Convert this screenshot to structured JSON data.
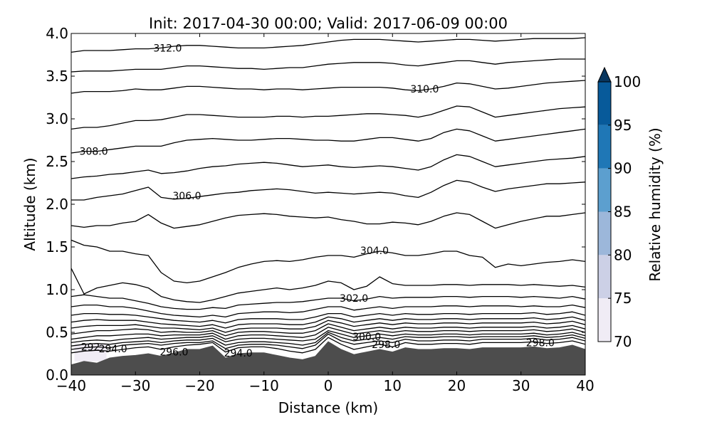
{
  "chart_data": {
    "type": "contour",
    "title": "Init: 2017-04-30 00:00; Valid: 2017-06-09 00:00",
    "xlabel": "Distance (km)",
    "ylabel": "Altitude (km)",
    "xlim": [
      -40,
      40
    ],
    "ylim": [
      0.0,
      4.0
    ],
    "xticks": [
      -40,
      -30,
      -20,
      -10,
      0,
      10,
      20,
      30,
      40
    ],
    "xtick_labels": [
      "−40",
      "−30",
      "−20",
      "−10",
      "0",
      "10",
      "20",
      "30",
      "40"
    ],
    "yticks": [
      0.0,
      0.5,
      1.0,
      1.5,
      2.0,
      2.5,
      3.0,
      3.5,
      4.0
    ],
    "ytick_labels": [
      "0.0",
      "0.5",
      "1.0",
      "1.5",
      "2.0",
      "2.5",
      "3.0",
      "3.5",
      "4.0"
    ],
    "colorbar": {
      "label": "Relative humidity (%)",
      "levels": [
        70,
        75,
        80,
        85,
        90,
        95,
        100
      ],
      "tick_labels": [
        "70",
        "75",
        "80",
        "85",
        "90",
        "95",
        "100"
      ],
      "colors": [
        "#f0ecf5",
        "#ccd0e6",
        "#9cb7da",
        "#5c9fcf",
        "#1f77b6",
        "#075a9a",
        "#08365f"
      ],
      "extend": "max"
    },
    "terrain": {
      "color": "#4d4d4d",
      "x": [
        -40,
        -38,
        -36,
        -34,
        -32,
        -30,
        -28,
        -26,
        -24,
        -22,
        -20,
        -18,
        -16,
        -14,
        -12,
        -10,
        -8,
        -6,
        -4,
        -2,
        0,
        2,
        4,
        6,
        8,
        10,
        12,
        14,
        16,
        18,
        20,
        22,
        24,
        26,
        28,
        30,
        32,
        34,
        36,
        38,
        40
      ],
      "altitude": [
        0.12,
        0.16,
        0.14,
        0.2,
        0.22,
        0.23,
        0.25,
        0.22,
        0.26,
        0.3,
        0.3,
        0.34,
        0.2,
        0.25,
        0.26,
        0.26,
        0.23,
        0.2,
        0.18,
        0.22,
        0.39,
        0.3,
        0.24,
        0.27,
        0.3,
        0.27,
        0.32,
        0.3,
        0.3,
        0.31,
        0.31,
        0.3,
        0.32,
        0.32,
        0.32,
        0.32,
        0.33,
        0.31,
        0.32,
        0.35,
        0.3
      ]
    },
    "contour_series": [
      {
        "altitudes": [
          0.26,
          0.28,
          0.29,
          0.28,
          0.3,
          0.32,
          0.33,
          0.3,
          0.33,
          0.35,
          0.36,
          0.38,
          0.27,
          0.32,
          0.33,
          0.33,
          0.31,
          0.28,
          0.26,
          0.3,
          0.44,
          0.36,
          0.3,
          0.33,
          0.36,
          0.33,
          0.38,
          0.36,
          0.36,
          0.37,
          0.37,
          0.36,
          0.38,
          0.38,
          0.38,
          0.38,
          0.39,
          0.37,
          0.38,
          0.4,
          0.36
        ]
      },
      {
        "altitudes": [
          0.3,
          0.32,
          0.33,
          0.32,
          0.35,
          0.36,
          0.37,
          0.35,
          0.37,
          0.38,
          0.38,
          0.4,
          0.31,
          0.35,
          0.36,
          0.36,
          0.35,
          0.33,
          0.31,
          0.35,
          0.48,
          0.4,
          0.36,
          0.38,
          0.4,
          0.38,
          0.42,
          0.4,
          0.4,
          0.41,
          0.41,
          0.4,
          0.42,
          0.42,
          0.42,
          0.42,
          0.43,
          0.41,
          0.42,
          0.44,
          0.4
        ]
      },
      {
        "altitudes": [
          0.34,
          0.36,
          0.37,
          0.36,
          0.38,
          0.39,
          0.4,
          0.38,
          0.4,
          0.41,
          0.41,
          0.43,
          0.35,
          0.38,
          0.39,
          0.39,
          0.38,
          0.37,
          0.35,
          0.38,
          0.5,
          0.44,
          0.4,
          0.42,
          0.44,
          0.42,
          0.45,
          0.44,
          0.44,
          0.45,
          0.45,
          0.44,
          0.45,
          0.45,
          0.45,
          0.45,
          0.46,
          0.44,
          0.45,
          0.47,
          0.43
        ]
      },
      {
        "altitudes": [
          0.38,
          0.4,
          0.41,
          0.4,
          0.42,
          0.43,
          0.44,
          0.42,
          0.43,
          0.44,
          0.44,
          0.46,
          0.39,
          0.42,
          0.43,
          0.43,
          0.42,
          0.41,
          0.4,
          0.42,
          0.52,
          0.48,
          0.44,
          0.46,
          0.48,
          0.46,
          0.48,
          0.47,
          0.47,
          0.48,
          0.48,
          0.47,
          0.48,
          0.48,
          0.48,
          0.48,
          0.49,
          0.47,
          0.48,
          0.5,
          0.46
        ]
      },
      {
        "altitudes": [
          0.42,
          0.44,
          0.46,
          0.46,
          0.47,
          0.48,
          0.48,
          0.46,
          0.47,
          0.47,
          0.47,
          0.49,
          0.42,
          0.46,
          0.47,
          0.47,
          0.46,
          0.45,
          0.44,
          0.47,
          0.56,
          0.52,
          0.48,
          0.5,
          0.52,
          0.5,
          0.52,
          0.51,
          0.51,
          0.52,
          0.52,
          0.51,
          0.52,
          0.52,
          0.52,
          0.52,
          0.53,
          0.51,
          0.52,
          0.54,
          0.5
        ]
      },
      {
        "altitudes": [
          0.48,
          0.5,
          0.52,
          0.52,
          0.53,
          0.54,
          0.53,
          0.5,
          0.51,
          0.5,
          0.5,
          0.52,
          0.46,
          0.5,
          0.51,
          0.51,
          0.5,
          0.49,
          0.49,
          0.52,
          0.6,
          0.56,
          0.52,
          0.54,
          0.56,
          0.54,
          0.56,
          0.55,
          0.55,
          0.56,
          0.56,
          0.55,
          0.56,
          0.56,
          0.56,
          0.56,
          0.57,
          0.55,
          0.56,
          0.58,
          0.54
        ]
      },
      {
        "altitudes": [
          0.55,
          0.57,
          0.58,
          0.58,
          0.58,
          0.59,
          0.57,
          0.55,
          0.55,
          0.54,
          0.53,
          0.55,
          0.5,
          0.54,
          0.55,
          0.55,
          0.55,
          0.54,
          0.54,
          0.57,
          0.64,
          0.61,
          0.57,
          0.59,
          0.61,
          0.59,
          0.61,
          0.6,
          0.6,
          0.61,
          0.61,
          0.6,
          0.61,
          0.61,
          0.61,
          0.61,
          0.62,
          0.6,
          0.61,
          0.63,
          0.59
        ]
      },
      {
        "altitudes": [
          0.62,
          0.64,
          0.65,
          0.64,
          0.64,
          0.64,
          0.62,
          0.6,
          0.59,
          0.58,
          0.57,
          0.59,
          0.55,
          0.59,
          0.6,
          0.6,
          0.6,
          0.59,
          0.59,
          0.62,
          0.68,
          0.66,
          0.62,
          0.64,
          0.66,
          0.64,
          0.66,
          0.65,
          0.65,
          0.66,
          0.66,
          0.65,
          0.66,
          0.66,
          0.66,
          0.66,
          0.67,
          0.65,
          0.66,
          0.68,
          0.64
        ]
      },
      {
        "altitudes": [
          0.7,
          0.72,
          0.72,
          0.71,
          0.71,
          0.7,
          0.68,
          0.66,
          0.64,
          0.63,
          0.62,
          0.64,
          0.61,
          0.65,
          0.66,
          0.66,
          0.66,
          0.65,
          0.65,
          0.68,
          0.72,
          0.72,
          0.68,
          0.7,
          0.72,
          0.7,
          0.72,
          0.71,
          0.71,
          0.72,
          0.72,
          0.71,
          0.72,
          0.72,
          0.72,
          0.72,
          0.73,
          0.71,
          0.72,
          0.74,
          0.7
        ]
      },
      {
        "altitudes": [
          0.8,
          0.82,
          0.82,
          0.8,
          0.8,
          0.78,
          0.75,
          0.72,
          0.7,
          0.69,
          0.68,
          0.7,
          0.68,
          0.72,
          0.73,
          0.74,
          0.74,
          0.73,
          0.74,
          0.77,
          0.8,
          0.8,
          0.76,
          0.78,
          0.8,
          0.78,
          0.8,
          0.8,
          0.8,
          0.81,
          0.81,
          0.8,
          0.81,
          0.81,
          0.81,
          0.8,
          0.81,
          0.8,
          0.8,
          0.82,
          0.79
        ]
      },
      {
        "altitudes": [
          0.92,
          0.94,
          0.92,
          0.9,
          0.9,
          0.87,
          0.84,
          0.8,
          0.78,
          0.77,
          0.77,
          0.79,
          0.78,
          0.82,
          0.83,
          0.84,
          0.85,
          0.85,
          0.86,
          0.88,
          0.9,
          0.9,
          0.87,
          0.89,
          0.92,
          0.9,
          0.91,
          0.91,
          0.91,
          0.92,
          0.92,
          0.91,
          0.92,
          0.92,
          0.92,
          0.91,
          0.92,
          0.91,
          0.9,
          0.92,
          0.89
        ]
      },
      {
        "altitudes": [
          1.25,
          0.95,
          1.02,
          1.05,
          1.08,
          1.06,
          1.02,
          0.92,
          0.88,
          0.86,
          0.85,
          0.88,
          0.92,
          0.96,
          0.98,
          1.0,
          1.02,
          1.0,
          1.02,
          1.05,
          1.1,
          1.08,
          1.0,
          1.04,
          1.15,
          1.07,
          1.05,
          1.05,
          1.05,
          1.06,
          1.06,
          1.05,
          1.06,
          1.06,
          1.06,
          1.05,
          1.06,
          1.05,
          1.04,
          1.05,
          1.03
        ]
      },
      {
        "altitudes": [
          1.58,
          1.52,
          1.5,
          1.45,
          1.45,
          1.42,
          1.4,
          1.2,
          1.1,
          1.08,
          1.1,
          1.15,
          1.2,
          1.26,
          1.3,
          1.33,
          1.34,
          1.33,
          1.35,
          1.38,
          1.4,
          1.4,
          1.38,
          1.42,
          1.45,
          1.43,
          1.4,
          1.4,
          1.42,
          1.45,
          1.45,
          1.4,
          1.38,
          1.26,
          1.3,
          1.28,
          1.3,
          1.32,
          1.33,
          1.35,
          1.33
        ]
      },
      {
        "altitudes": [
          1.75,
          1.73,
          1.75,
          1.75,
          1.78,
          1.8,
          1.88,
          1.78,
          1.72,
          1.74,
          1.76,
          1.8,
          1.84,
          1.87,
          1.88,
          1.89,
          1.88,
          1.86,
          1.85,
          1.84,
          1.85,
          1.82,
          1.8,
          1.77,
          1.77,
          1.79,
          1.78,
          1.76,
          1.8,
          1.86,
          1.9,
          1.88,
          1.8,
          1.72,
          1.76,
          1.8,
          1.83,
          1.86,
          1.86,
          1.88,
          1.9
        ]
      },
      {
        "altitudes": [
          2.05,
          2.05,
          2.08,
          2.1,
          2.12,
          2.16,
          2.2,
          2.08,
          2.06,
          2.07,
          2.09,
          2.11,
          2.13,
          2.14,
          2.16,
          2.17,
          2.18,
          2.17,
          2.15,
          2.13,
          2.14,
          2.13,
          2.12,
          2.13,
          2.14,
          2.13,
          2.1,
          2.08,
          2.14,
          2.22,
          2.28,
          2.26,
          2.2,
          2.15,
          2.18,
          2.2,
          2.22,
          2.24,
          2.24,
          2.25,
          2.26
        ]
      },
      {
        "altitudes": [
          2.3,
          2.32,
          2.33,
          2.35,
          2.36,
          2.38,
          2.4,
          2.36,
          2.37,
          2.39,
          2.42,
          2.44,
          2.45,
          2.47,
          2.48,
          2.49,
          2.48,
          2.46,
          2.44,
          2.45,
          2.46,
          2.44,
          2.43,
          2.44,
          2.45,
          2.44,
          2.42,
          2.4,
          2.44,
          2.52,
          2.58,
          2.56,
          2.5,
          2.44,
          2.46,
          2.48,
          2.5,
          2.52,
          2.53,
          2.54,
          2.56
        ]
      },
      {
        "altitudes": [
          2.6,
          2.62,
          2.62,
          2.64,
          2.66,
          2.68,
          2.68,
          2.68,
          2.72,
          2.75,
          2.76,
          2.77,
          2.76,
          2.75,
          2.75,
          2.76,
          2.77,
          2.77,
          2.76,
          2.75,
          2.75,
          2.74,
          2.74,
          2.76,
          2.78,
          2.78,
          2.76,
          2.74,
          2.77,
          2.84,
          2.88,
          2.86,
          2.8,
          2.74,
          2.76,
          2.78,
          2.8,
          2.82,
          2.84,
          2.86,
          2.88
        ]
      },
      {
        "altitudes": [
          2.88,
          2.9,
          2.9,
          2.92,
          2.95,
          2.98,
          2.98,
          2.99,
          3.02,
          3.05,
          3.05,
          3.04,
          3.03,
          3.02,
          3.02,
          3.02,
          3.03,
          3.03,
          3.02,
          3.03,
          3.03,
          3.04,
          3.05,
          3.06,
          3.06,
          3.05,
          3.04,
          3.02,
          3.05,
          3.1,
          3.15,
          3.14,
          3.08,
          3.02,
          3.04,
          3.06,
          3.08,
          3.1,
          3.12,
          3.13,
          3.14
        ]
      },
      {
        "altitudes": [
          3.3,
          3.32,
          3.32,
          3.32,
          3.33,
          3.35,
          3.34,
          3.34,
          3.36,
          3.38,
          3.38,
          3.37,
          3.36,
          3.35,
          3.35,
          3.34,
          3.35,
          3.35,
          3.34,
          3.35,
          3.36,
          3.37,
          3.37,
          3.37,
          3.37,
          3.36,
          3.34,
          3.33,
          3.35,
          3.38,
          3.42,
          3.41,
          3.38,
          3.35,
          3.36,
          3.38,
          3.4,
          3.42,
          3.43,
          3.44,
          3.45
        ]
      },
      {
        "altitudes": [
          3.55,
          3.56,
          3.56,
          3.56,
          3.57,
          3.58,
          3.58,
          3.58,
          3.6,
          3.62,
          3.62,
          3.61,
          3.6,
          3.59,
          3.59,
          3.58,
          3.59,
          3.6,
          3.6,
          3.62,
          3.64,
          3.65,
          3.66,
          3.66,
          3.66,
          3.65,
          3.63,
          3.62,
          3.64,
          3.66,
          3.68,
          3.68,
          3.66,
          3.64,
          3.66,
          3.67,
          3.68,
          3.69,
          3.7,
          3.7,
          3.7
        ]
      },
      {
        "altitudes": [
          3.78,
          3.8,
          3.8,
          3.8,
          3.81,
          3.82,
          3.82,
          3.83,
          3.85,
          3.86,
          3.86,
          3.85,
          3.84,
          3.83,
          3.83,
          3.83,
          3.84,
          3.85,
          3.86,
          3.88,
          3.9,
          3.92,
          3.93,
          3.93,
          3.93,
          3.92,
          3.91,
          3.9,
          3.91,
          3.92,
          3.93,
          3.93,
          3.92,
          3.91,
          3.92,
          3.93,
          3.94,
          3.94,
          3.94,
          3.94,
          3.95
        ]
      }
    ],
    "contour_x": [
      -40,
      -38,
      -36,
      -34,
      -32,
      -30,
      -28,
      -26,
      -24,
      -22,
      -20,
      -18,
      -16,
      -14,
      -12,
      -10,
      -8,
      -6,
      -4,
      -2,
      0,
      2,
      4,
      6,
      8,
      10,
      12,
      14,
      16,
      18,
      20,
      22,
      24,
      26,
      28,
      30,
      32,
      34,
      36,
      38,
      40
    ],
    "contour_labels": [
      {
        "text": "312.0",
        "x": -25.0,
        "y": 3.83
      },
      {
        "text": "310.0",
        "x": 15.0,
        "y": 3.35
      },
      {
        "text": "308.0",
        "x": -36.5,
        "y": 2.62
      },
      {
        "text": "306.0",
        "x": -22.0,
        "y": 2.1
      },
      {
        "text": "304.0",
        "x": 7.2,
        "y": 1.46
      },
      {
        "text": "302.0",
        "x": 4.0,
        "y": 0.9
      },
      {
        "text": "300.0",
        "x": 6.0,
        "y": 0.45
      },
      {
        "text": "298.0",
        "x": 9.0,
        "y": 0.36
      },
      {
        "text": "298.0",
        "x": 33.0,
        "y": 0.38
      },
      {
        "text": "296.0",
        "x": -24.0,
        "y": 0.27
      },
      {
        "text": "294.0",
        "x": -14.0,
        "y": 0.26
      },
      {
        "text": "294.0",
        "x": -33.5,
        "y": 0.31
      },
      {
        "text": "292",
        "x": -37.0,
        "y": 0.33
      }
    ],
    "rh_patches": [
      {
        "level_index": 0,
        "x": [
          -39.5,
          -34.5
        ],
        "ytop": 0.36,
        "ybottom": 0.16
      }
    ]
  }
}
